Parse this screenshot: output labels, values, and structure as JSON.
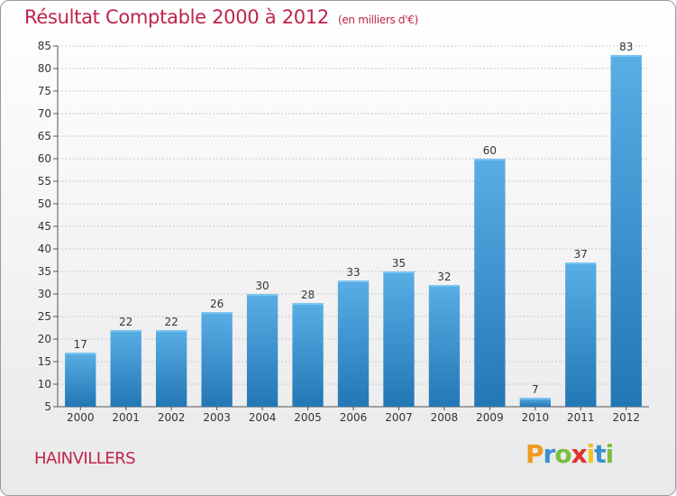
{
  "chart_data": {
    "type": "bar",
    "title": "Résultat Comptable 2000 à 2012",
    "subtitle": "(en milliers d'€)",
    "categories": [
      "2000",
      "2001",
      "2002",
      "2003",
      "2004",
      "2005",
      "2006",
      "2007",
      "2008",
      "2009",
      "2010",
      "2011",
      "2012"
    ],
    "values": [
      17,
      22,
      22,
      26,
      30,
      28,
      33,
      35,
      32,
      60,
      7,
      37,
      83
    ],
    "ylim": [
      5,
      85
    ],
    "yticks": [
      5,
      10,
      15,
      20,
      25,
      30,
      35,
      40,
      45,
      50,
      55,
      60,
      65,
      70,
      75,
      80,
      85
    ],
    "grid": true,
    "xlabel": "",
    "ylabel": ""
  },
  "commune": "HAINVILLERS",
  "logo": {
    "letters": [
      "P",
      "r",
      "o",
      "x",
      "i",
      "t",
      "i"
    ],
    "colors": [
      "#f29a1e",
      "#3a8fd0",
      "#7bbf3b",
      "#e0312d",
      "#f2c21e",
      "#3a8fd0",
      "#7bbf3b"
    ]
  },
  "colors": {
    "title": "#c0234b",
    "bar_top": "#5aaee6",
    "bar_bottom": "#2277b5"
  }
}
